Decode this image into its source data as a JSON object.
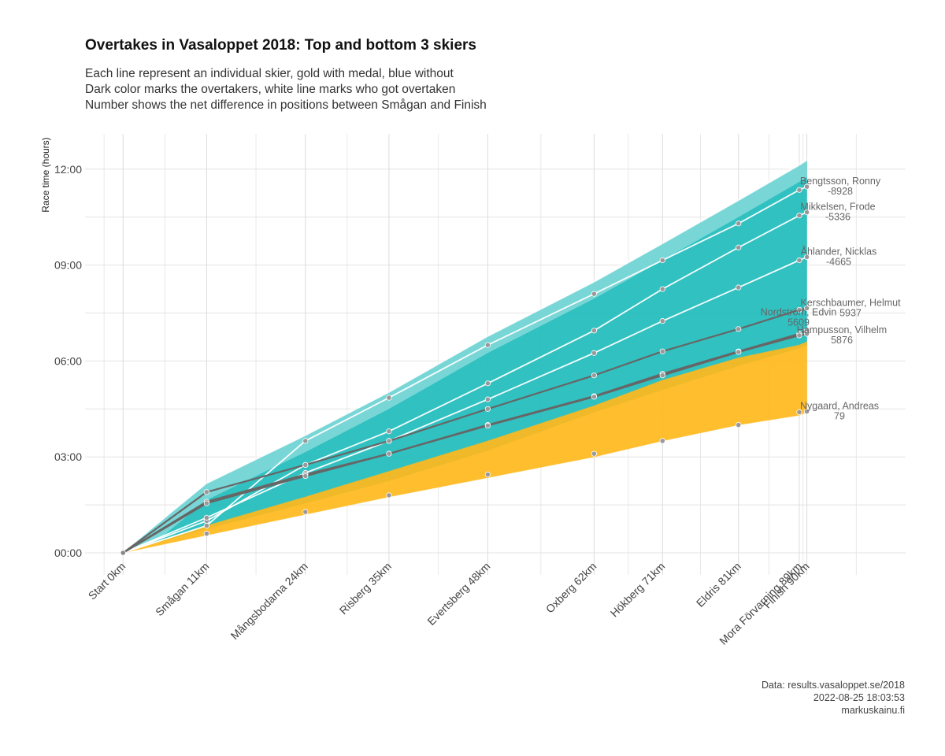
{
  "title": "Overtakes in Vasaloppet 2018: Top and bottom 3 skiers",
  "subtitle_lines": [
    "Each line represent an individual skier, gold with medal, blue without",
    "Dark color marks the overtakers, white line marks who got overtaken",
    "Number shows the net difference in positions between Smågan and Finish"
  ],
  "caption_lines": [
    "Data: results.vasaloppet.se/2018",
    "2022-08-25 18:03:53",
    "markuskainu.fi"
  ],
  "colors": {
    "blue": "#1fbcbc",
    "gold": "#ffb81c",
    "dark_line": "#666666",
    "point": "#999999",
    "grid": "#e3e3e3"
  },
  "chart_data": {
    "type": "line",
    "ylabel": "Race time (hours)",
    "xlabel": "",
    "x_unit": "km",
    "y_unit": "hours",
    "ylim": [
      0,
      12.5
    ],
    "y_ticks": [
      {
        "value": 0,
        "label": "00:00"
      },
      {
        "value": 3,
        "label": "03:00"
      },
      {
        "value": 6,
        "label": "06:00"
      },
      {
        "value": 9,
        "label": "09:00"
      },
      {
        "value": 12,
        "label": "12:00"
      }
    ],
    "x_ticks": [
      {
        "km": 0,
        "label": "Start 0km"
      },
      {
        "km": 11,
        "label": "Smågan 11km"
      },
      {
        "km": 24,
        "label": "Mångsbodarna 24km"
      },
      {
        "km": 35,
        "label": "Risberg 35km"
      },
      {
        "km": 48,
        "label": "Evertsberg 48km"
      },
      {
        "km": 62,
        "label": "Oxberg 62km"
      },
      {
        "km": 71,
        "label": "Hökberg 71km"
      },
      {
        "km": 81,
        "label": "Eldris 81km"
      },
      {
        "km": 89,
        "label": "Mora Förvarning 89km"
      },
      {
        "km": 90,
        "label": "Finish 90km"
      }
    ],
    "band_blue": {
      "lower": [
        0,
        0.75,
        1.55,
        2.25,
        3.2,
        4.4,
        5.1,
        5.85,
        6.4,
        6.5
      ],
      "upper": [
        0,
        2.15,
        3.65,
        5.0,
        6.75,
        8.45,
        9.65,
        11.0,
        12.1,
        12.25
      ]
    },
    "band_gold": {
      "lower": [
        0,
        0.55,
        1.2,
        1.75,
        2.35,
        3.0,
        3.5,
        4.0,
        4.3,
        4.4
      ],
      "upper": [
        0,
        0.85,
        1.75,
        2.55,
        3.5,
        4.6,
        5.4,
        6.1,
        6.5,
        6.6
      ]
    },
    "series": [
      {
        "name": "Bengtsson, Ronny",
        "diff": "-8928",
        "style": "white",
        "values": [
          0,
          0.85,
          3.5,
          4.85,
          6.5,
          8.1,
          9.15,
          10.3,
          11.35,
          11.45
        ]
      },
      {
        "name": "Mikkelsen, Frode",
        "diff": "-5336",
        "style": "white",
        "values": [
          0,
          1.0,
          2.75,
          3.8,
          5.3,
          6.95,
          8.25,
          9.55,
          10.55,
          10.65
        ]
      },
      {
        "name": "Åhlander, Nicklas",
        "diff": "-4665",
        "style": "white",
        "values": [
          0,
          1.1,
          2.5,
          3.5,
          4.8,
          6.25,
          7.25,
          8.3,
          9.15,
          9.25
        ]
      },
      {
        "name": "Kerschbaumer, Helmut",
        "diff": "5937",
        "style": "dark",
        "values": [
          0,
          1.9,
          2.75,
          3.5,
          4.5,
          5.55,
          6.3,
          7.0,
          7.6,
          7.65
        ]
      },
      {
        "name": "Hampusson, Vilhelm",
        "diff": "5876",
        "style": "dark",
        "values": [
          0,
          1.6,
          2.45,
          3.1,
          4.0,
          4.9,
          5.6,
          6.3,
          6.85,
          6.95
        ]
      },
      {
        "name": "Nordström, Edvin",
        "diff": "5609",
        "style": "dark",
        "values": [
          0,
          1.55,
          2.4,
          3.1,
          3.98,
          4.88,
          5.55,
          6.28,
          6.8,
          6.85
        ]
      },
      {
        "name": "Nygaard, Andreas",
        "diff": "79",
        "style": "none",
        "values": [
          0,
          0.6,
          1.28,
          1.8,
          2.45,
          3.1,
          3.5,
          4.0,
          4.4,
          4.42
        ]
      }
    ]
  }
}
